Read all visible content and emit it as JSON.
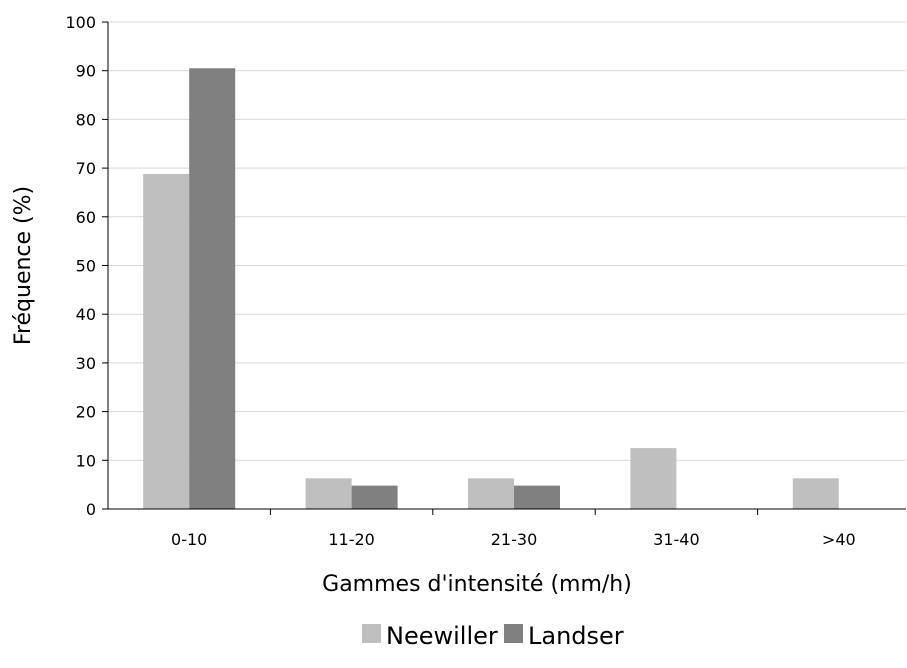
{
  "chart_data": {
    "type": "bar",
    "categories": [
      "0-10",
      "11-20",
      "21-30",
      "31-40",
      ">40"
    ],
    "series": [
      {
        "name": "Neewiller",
        "values": [
          68.8,
          6.3,
          6.3,
          12.5,
          6.3
        ],
        "color": "#bfbfbf"
      },
      {
        "name": "Landser",
        "values": [
          90.5,
          4.8,
          4.8,
          0,
          0
        ],
        "color": "#808080"
      }
    ],
    "xlabel": "Gammes d'intensité (mm/h)",
    "ylabel": "Fréquence (%)",
    "ylim": [
      0,
      100
    ],
    "yticks": [
      0,
      10,
      20,
      30,
      40,
      50,
      60,
      70,
      80,
      90,
      100
    ],
    "grid": true,
    "legend_position": "bottom"
  }
}
